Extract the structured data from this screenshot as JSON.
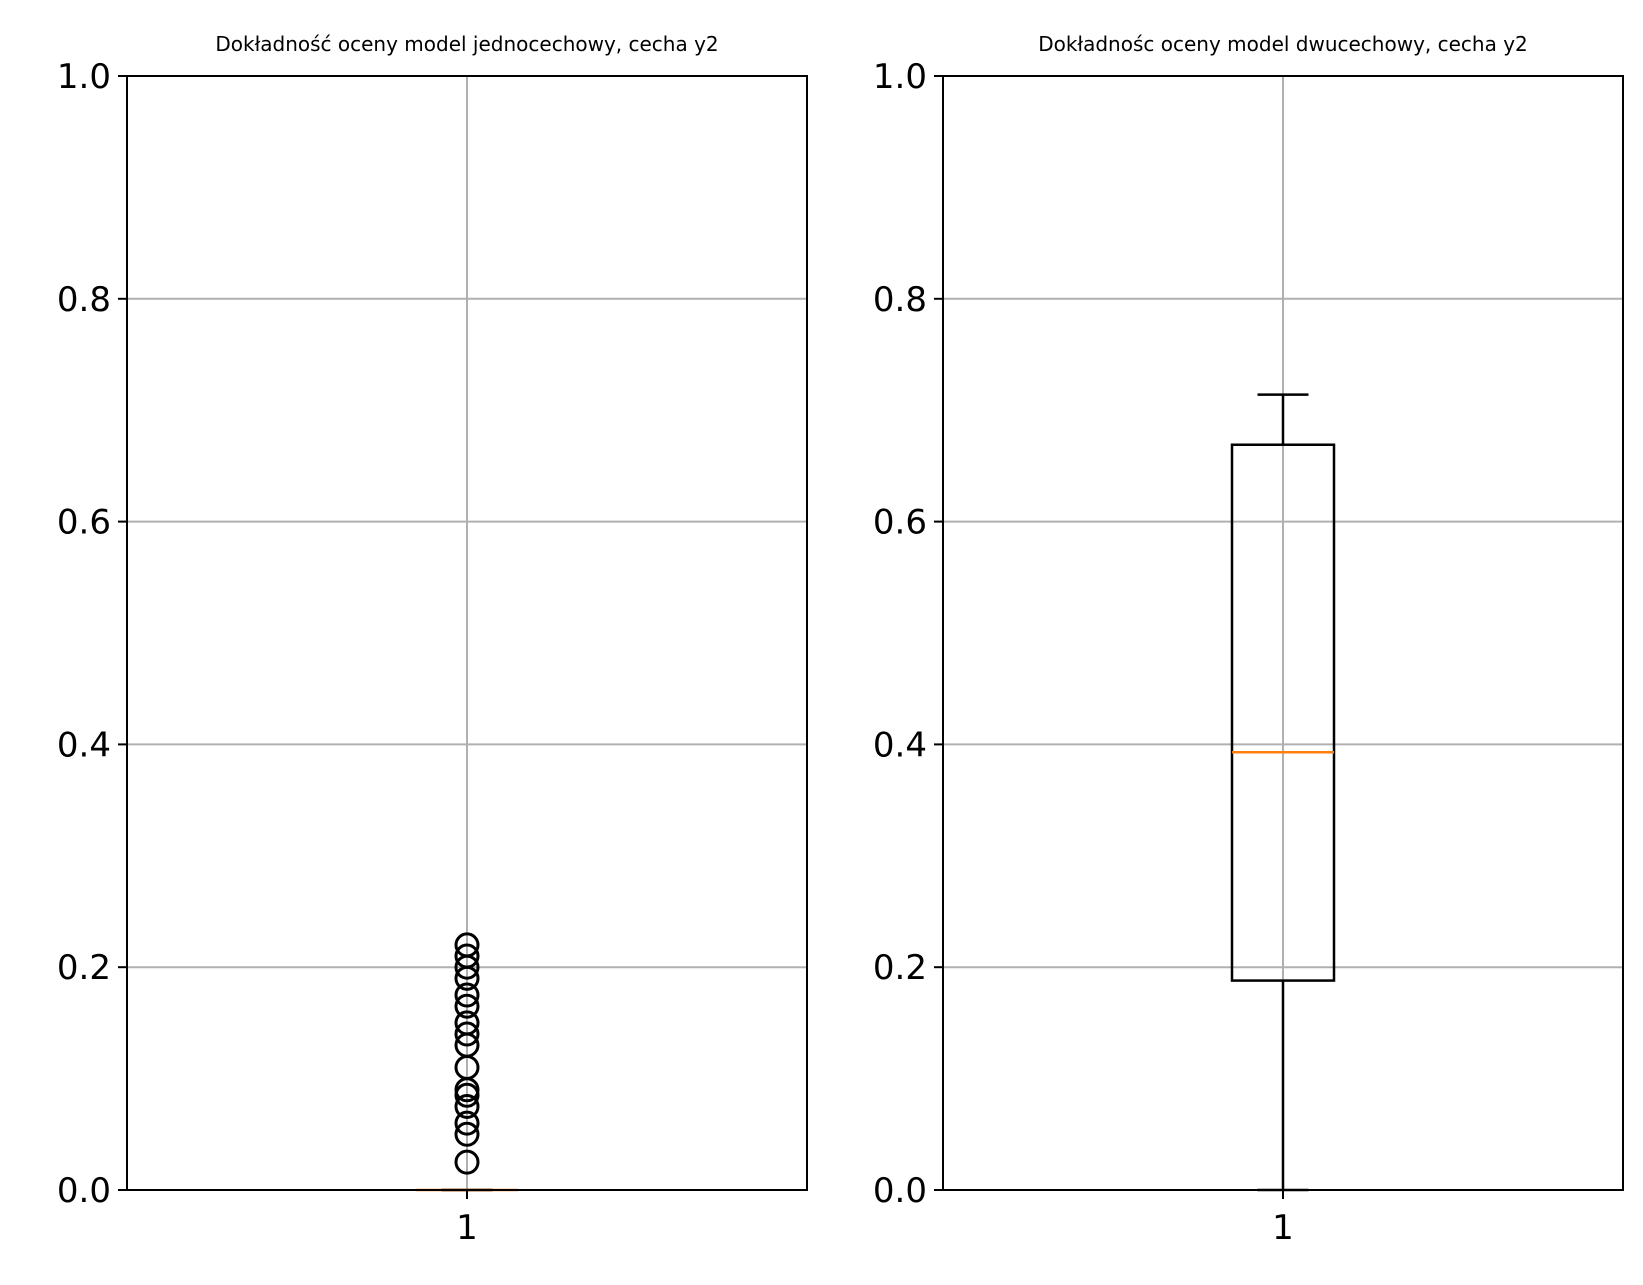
{
  "colors": {
    "box": "#000000",
    "median": "#ff7f0e",
    "grid": "#b0b0b0",
    "outlier": "#000000"
  },
  "chart_data": [
    {
      "type": "box",
      "title": "Dokładność oceny model jednocechowy, cecha y2",
      "categories": [
        "1"
      ],
      "ylim": [
        0,
        1
      ],
      "yticks": [
        "0.0",
        "0.2",
        "0.4",
        "0.6",
        "0.8",
        "1.0"
      ],
      "grid": true,
      "box": {
        "whisker_low": 0.0,
        "q1": 0.0,
        "median": 0.0,
        "q3": 0.0,
        "whisker_high": 0.0
      },
      "outliers": [
        0.025,
        0.05,
        0.06,
        0.075,
        0.085,
        0.09,
        0.11,
        0.13,
        0.14,
        0.15,
        0.165,
        0.175,
        0.19,
        0.2,
        0.21,
        0.22
      ]
    },
    {
      "type": "box",
      "title": "Dokładnośc oceny model dwucechowy, cecha y2",
      "categories": [
        "1"
      ],
      "ylim": [
        0,
        1
      ],
      "yticks": [
        "0.0",
        "0.2",
        "0.4",
        "0.6",
        "0.8",
        "1.0"
      ],
      "grid": true,
      "box": {
        "whisker_low": 0.0,
        "q1": 0.188,
        "median": 0.393,
        "q3": 0.669,
        "whisker_high": 0.714
      },
      "outliers": []
    }
  ]
}
